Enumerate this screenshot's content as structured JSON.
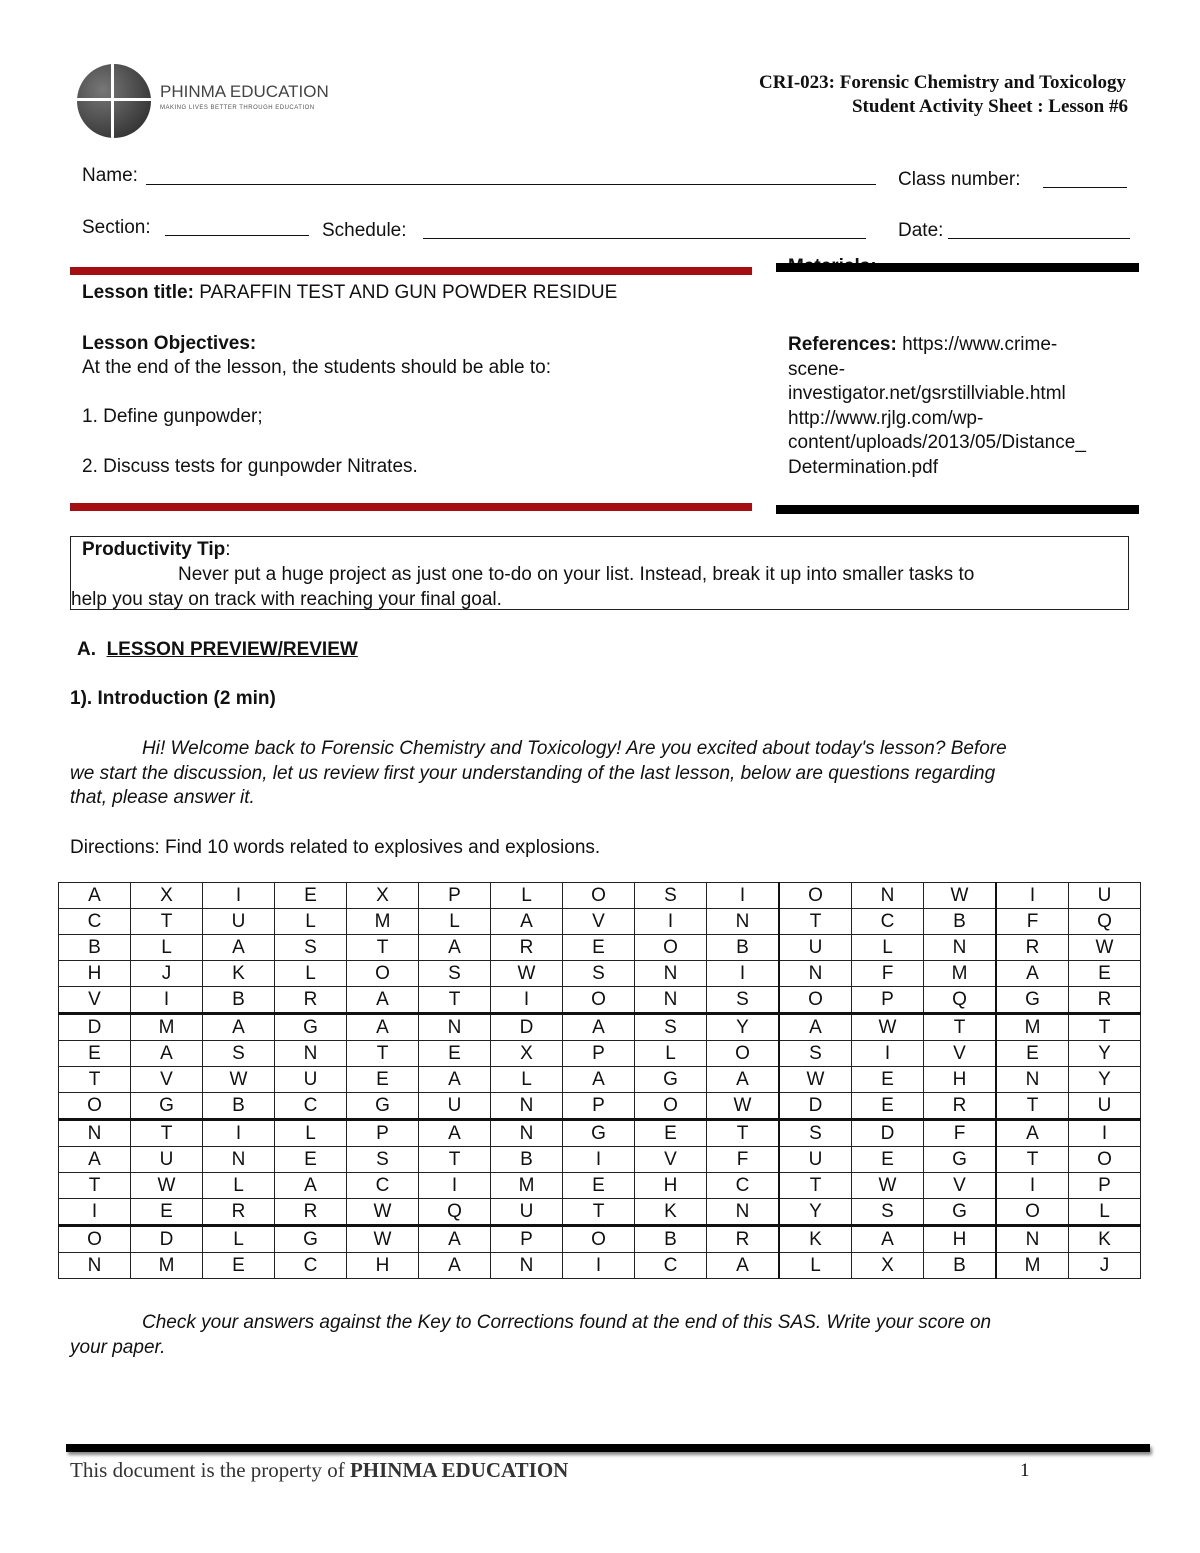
{
  "header": {
    "logo_name": "PHINMA EDUCATION",
    "logo_tagline": "MAKING LIVES BETTER THROUGH EDUCATION",
    "course": "CRI-023: Forensic Chemistry and Toxicology",
    "sheet": "Student Activity Sheet : Lesson #6"
  },
  "fields": {
    "name": "Name:",
    "class_number": "Class number:",
    "section": "Section:",
    "schedule": "Schedule:",
    "date": "Date:"
  },
  "lesson": {
    "title_label": "Lesson title:",
    "title": "PARAFFIN TEST AND GUN POWDER RESIDUE",
    "objectives_label": "Lesson Objectives:",
    "objectives_intro": "At the end of the lesson, the students should be able to:",
    "objectives": [
      "1.  Define gunpowder;",
      "2. Discuss tests for gunpowder Nitrates."
    ]
  },
  "materials_label": "Materials:",
  "references": {
    "label": "References:",
    "lines": [
      "https://www.crime-",
      "scene-",
      "investigator.net/gsrstillviable.html",
      "http://www.rjlg.com/wp-",
      "content/uploads/2013/05/Distance_",
      "Determination.pdf"
    ]
  },
  "tip": {
    "label": "Productivity Tip",
    "text1": "Never put a huge project as just one to-do on your list. Instead, break it up into smaller tasks to",
    "text2": "help you stay on track with reaching your final goal."
  },
  "section_a": {
    "letter": "A.",
    "title": "LESSON PREVIEW/REVIEW"
  },
  "intro": {
    "heading": "1). Introduction (2 min)",
    "p1": "Hi! Welcome back to Forensic Chemistry and Toxicology! Are you excited about today's lesson? Before",
    "p2": "we start the discussion, let us review first your understanding of the last lesson, below are questions regarding",
    "p3": "that, please answer it.",
    "directions": "Directions: Find 10 words related to explosives and explosions."
  },
  "word_search": [
    "AXIEXPLOSIONWIU",
    "CTULMLAVINTCBFQ",
    "BLASTAREOBULNRW",
    "HJKLOSWSNINFMAE",
    "VIBRATIONSOPQGR",
    "DMAGANDASYAWTMT",
    "EASNTEXPLOSIVEY",
    "TVWUEALAGAWEHNY",
    "OGBCGUNPOWDERTU",
    "NTILPANGETSDFAI",
    "AUNESTBIVFUEGTO",
    "TWLACIMEHCTWVIP",
    "IERRWQUTKNYSGOL",
    "ODLGWAPOBRKAHNK",
    "NMECHANICALXBMJ"
  ],
  "check": {
    "p1": "Check your answers against the Key to Corrections found at the end of this SAS.  Write your score on",
    "p2": "your paper."
  },
  "footer": {
    "text": "This document is the property of ",
    "brand": "PHINMA EDUCATION",
    "page": "1"
  },
  "colors": {
    "red_bar": "#a50f14",
    "black_bar": "#000000"
  }
}
